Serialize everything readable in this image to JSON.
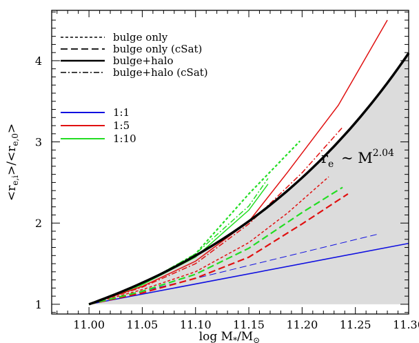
{
  "chart_data": {
    "type": "line",
    "xlabel": "log M*/M⊙",
    "ylabel": "<re,i>/<re,0>",
    "xlim": [
      10.965,
      11.3
    ],
    "ylim": [
      0.88,
      4.62
    ],
    "xticks": [
      "11.00",
      "11.05",
      "11.10",
      "11.15",
      "11.20",
      "11.25",
      "11.30"
    ],
    "yticks": [
      "1",
      "2",
      "3",
      "4"
    ],
    "colors": {
      "1:1": "#1010e0",
      "1:5": "#e01010",
      "1:10": "#22dd22",
      "black": "#000000",
      "fill": "#dcdcdc"
    },
    "line_styles": [
      {
        "label": "bulge only",
        "style": "dotted"
      },
      {
        "label": "bulge only (cSat)",
        "style": "dashed"
      },
      {
        "label": "bulge+halo",
        "style": "solid"
      },
      {
        "label": "bulge+halo (cSat)",
        "style": "dash-dot"
      }
    ],
    "ratios": [
      {
        "label": "1:1",
        "color_key": "1:1"
      },
      {
        "label": "1:5",
        "color_key": "1:5"
      },
      {
        "label": "1:10",
        "color_key": "1:10"
      }
    ],
    "fit_curve": {
      "name": "re ~ M^2.04",
      "label_main": "r",
      "label_sub": "e",
      "label_mid": " ~ M",
      "label_sup": "2.04",
      "exponent": 2.04,
      "x_range": [
        11.0,
        11.3
      ],
      "shaded_below": true
    },
    "series": [
      {
        "ratio": "1:1",
        "style": "solid",
        "color_key": "1:1",
        "width": 1.6,
        "x": [
          11.0,
          11.3
        ],
        "y": [
          1.0,
          1.75
        ]
      },
      {
        "ratio": "1:1",
        "style": "dashed",
        "color_key": "1:1",
        "width": 1.0,
        "x": [
          11.0,
          11.27
        ],
        "y": [
          1.0,
          1.86
        ]
      },
      {
        "ratio": "1:5",
        "style": "solid",
        "color_key": "1:5",
        "width": 1.5,
        "x": [
          11.0,
          11.05,
          11.1,
          11.15,
          11.186,
          11.234,
          11.28
        ],
        "y": [
          1.0,
          1.22,
          1.53,
          2.02,
          2.62,
          3.45,
          4.5
        ]
      },
      {
        "ratio": "1:5",
        "style": "dash-dot",
        "color_key": "1:5",
        "width": 1.5,
        "x": [
          11.0,
          11.05,
          11.1,
          11.15,
          11.2,
          11.238
        ],
        "y": [
          1.0,
          1.21,
          1.5,
          1.99,
          2.62,
          3.18
        ]
      },
      {
        "ratio": "1:5",
        "style": "dotted",
        "color_key": "1:5",
        "width": 1.5,
        "x": [
          11.0,
          11.05,
          11.1,
          11.15,
          11.186,
          11.225
        ],
        "y": [
          1.0,
          1.18,
          1.4,
          1.76,
          2.12,
          2.57
        ]
      },
      {
        "ratio": "1:5",
        "style": "dashed",
        "color_key": "1:5",
        "width": 2.2,
        "x": [
          11.0,
          11.05,
          11.1,
          11.15,
          11.2,
          11.243
        ],
        "y": [
          1.0,
          1.14,
          1.32,
          1.58,
          1.99,
          2.36
        ]
      },
      {
        "ratio": "1:10",
        "style": "solid",
        "color_key": "1:10",
        "width": 1.5,
        "x": [
          11.0,
          11.05,
          11.1,
          11.15,
          11.168
        ],
        "y": [
          1.0,
          1.24,
          1.58,
          2.16,
          2.48
        ]
      },
      {
        "ratio": "1:10",
        "style": "dotted",
        "color_key": "1:10",
        "width": 2.2,
        "x": [
          11.0,
          11.05,
          11.1,
          11.15,
          11.198
        ],
        "y": [
          1.0,
          1.24,
          1.62,
          2.36,
          3.01
        ]
      },
      {
        "ratio": "1:10",
        "style": "dash-dot",
        "color_key": "1:10",
        "width": 1.5,
        "x": [
          11.0,
          11.05,
          11.1,
          11.15,
          11.168
        ],
        "y": [
          1.0,
          1.25,
          1.62,
          2.21,
          2.55
        ]
      },
      {
        "ratio": "1:10",
        "style": "dashed",
        "color_key": "1:10",
        "width": 2.2,
        "x": [
          11.0,
          11.05,
          11.1,
          11.15,
          11.2,
          11.238
        ],
        "y": [
          1.0,
          1.16,
          1.37,
          1.69,
          2.13,
          2.44
        ]
      }
    ]
  }
}
